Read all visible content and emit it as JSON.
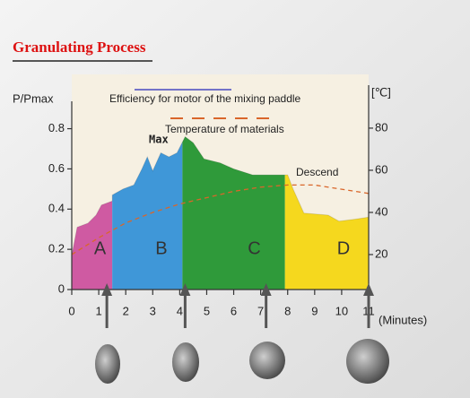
{
  "chart_data": {
    "type": "area",
    "title": "Granulating Process",
    "ylabel": "P/Pmax",
    "y2label": "[℃]",
    "xlabel": "(Minutes)",
    "xlim": [
      0,
      11
    ],
    "xticks": [
      0,
      1,
      2,
      3,
      4,
      5,
      6,
      7,
      8,
      9,
      10,
      11
    ],
    "ylim": [
      0,
      1.07
    ],
    "yticks": [
      0,
      0.2,
      0.4,
      0.6,
      0.8
    ],
    "y2lim": [
      3.4,
      105.5
    ],
    "y2ticks": [
      20,
      40,
      60,
      80
    ],
    "series": [
      {
        "name": "Efficiency for motor of the mixing paddle",
        "color": "#7373c9",
        "x": [
          0,
          0.2,
          0.6,
          0.9,
          1.1,
          1.5,
          1.5,
          1.9,
          2.3,
          2.6,
          2.8,
          3.0,
          3.3,
          3.6,
          3.9,
          4.2,
          4.5,
          4.9,
          5.5,
          6.0,
          6.7,
          7.5,
          8.0,
          8.2,
          8.6,
          9.5,
          9.9,
          10.5,
          11
        ],
        "values": [
          0.17,
          0.31,
          0.33,
          0.37,
          0.42,
          0.44,
          0.47,
          0.5,
          0.52,
          0.6,
          0.66,
          0.59,
          0.68,
          0.66,
          0.68,
          0.76,
          0.73,
          0.65,
          0.63,
          0.6,
          0.57,
          0.57,
          0.57,
          0.5,
          0.38,
          0.37,
          0.34,
          0.35,
          0.36
        ]
      },
      {
        "name": "Temperature of materials",
        "color": "#d9662a",
        "axis": "y2",
        "dashed": true,
        "x": [
          0,
          1,
          2,
          3,
          4,
          5,
          6,
          7,
          8,
          9,
          10,
          11
        ],
        "values": [
          20,
          28,
          35,
          40,
          44,
          47,
          50,
          52,
          53,
          53,
          51,
          49
        ]
      }
    ],
    "regions": [
      {
        "label": "A",
        "start": 0,
        "end": 1.5,
        "color": "#cf5aa2"
      },
      {
        "label": "B",
        "start": 1.5,
        "end": 4.1,
        "color": "#3f97d8"
      },
      {
        "label": "C",
        "start": 4.1,
        "end": 7.9,
        "color": "#2f9a3a"
      },
      {
        "label": "D",
        "start": 7.9,
        "end": 11,
        "color": "#f5d81e"
      }
    ],
    "annotations": {
      "max": "Max",
      "descend": "Descend"
    },
    "arrows_x": [
      1.3,
      4.2,
      7.2,
      11
    ]
  }
}
